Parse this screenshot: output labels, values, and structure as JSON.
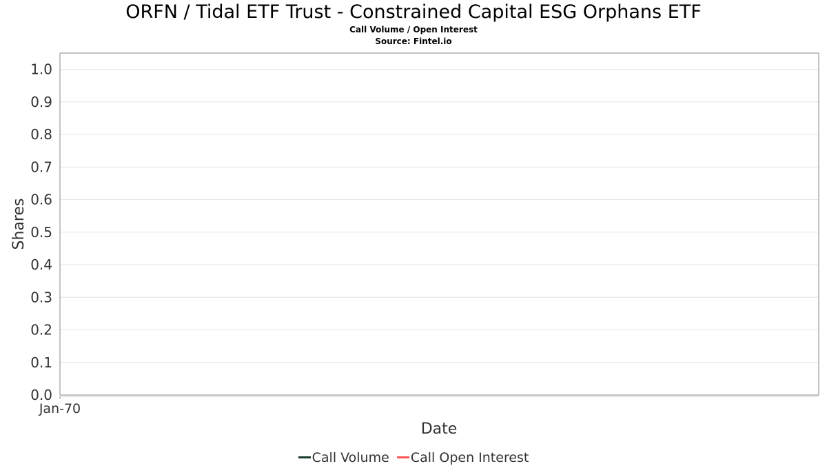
{
  "header": {
    "title": "ORFN / Tidal ETF Trust - Constrained Capital ESG Orphans ETF",
    "subtitle": "Call Volume / Open Interest",
    "source": "Source: Fintel.io"
  },
  "chart_data": {
    "type": "line",
    "title": "ORFN / Tidal ETF Trust - Constrained Capital ESG Orphans ETF",
    "subtitle": "Call Volume / Open Interest",
    "source": "Source: Fintel.io",
    "xlabel": "Date",
    "ylabel": "Shares",
    "ylim": [
      0,
      1.05
    ],
    "yticks": [
      "0.0",
      "0.1",
      "0.2",
      "0.3",
      "0.4",
      "0.5",
      "0.6",
      "0.7",
      "0.8",
      "0.9",
      "1.0"
    ],
    "xticks": [
      "Jan-70"
    ],
    "grid": true,
    "legend_position": "bottom",
    "series": [
      {
        "name": "Call Volume",
        "color": "#1a3a2a",
        "values": []
      },
      {
        "name": "Call Open Interest",
        "color": "#ff5555",
        "values": []
      }
    ]
  }
}
